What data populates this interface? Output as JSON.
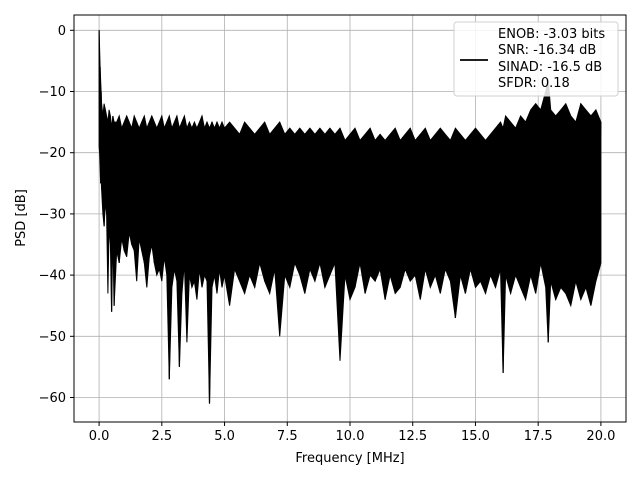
{
  "chart_data": {
    "type": "line",
    "title": "",
    "xlabel": "Frequency [MHz]",
    "ylabel": "PSD [dB]",
    "xlim": [
      -1.0,
      21.0
    ],
    "ylim": [
      -64,
      2.5
    ],
    "xticks": [
      0.0,
      2.5,
      5.0,
      7.5,
      10.0,
      12.5,
      15.0,
      17.5,
      20.0
    ],
    "xtick_labels": [
      "0.0",
      "2.5",
      "5.0",
      "7.5",
      "10.0",
      "12.5",
      "15.0",
      "17.5",
      "20.0"
    ],
    "yticks": [
      0,
      -10,
      -20,
      -30,
      -40,
      -50,
      -60
    ],
    "ytick_labels": [
      "0",
      "−10",
      "−20",
      "−30",
      "−40",
      "−50",
      "−60"
    ],
    "grid": true,
    "legend_position": "top-right",
    "series": [
      {
        "name": "ENOB: -3.03 bits\nSNR: -16.34 dB\nSINAD: -16.5 dB\nSFDR: 0.18",
        "legend_lines": [
          "ENOB: -3.03 bits",
          "SNR: -16.34 dB",
          "SINAD: -16.5 dB",
          "SFDR: 0.18"
        ],
        "color": "#000000",
        "x": [
          0.0,
          0.02,
          0.04,
          0.06,
          0.08,
          0.1,
          0.15,
          0.2,
          0.25,
          0.3,
          0.35,
          0.4,
          0.45,
          0.5,
          0.55,
          0.6,
          0.7,
          0.8,
          0.9,
          1.0,
          1.1,
          1.2,
          1.3,
          1.4,
          1.5,
          1.6,
          1.7,
          1.8,
          1.9,
          2.0,
          2.1,
          2.2,
          2.3,
          2.4,
          2.5,
          2.6,
          2.7,
          2.8,
          2.9,
          3.0,
          3.1,
          3.2,
          3.3,
          3.4,
          3.5,
          3.6,
          3.7,
          3.8,
          3.9,
          4.0,
          4.1,
          4.2,
          4.3,
          4.4,
          4.5,
          4.6,
          4.7,
          4.8,
          4.9,
          5.0,
          5.2,
          5.4,
          5.6,
          5.8,
          6.0,
          6.2,
          6.4,
          6.6,
          6.8,
          7.0,
          7.2,
          7.4,
          7.6,
          7.8,
          8.0,
          8.2,
          8.4,
          8.6,
          8.8,
          9.0,
          9.2,
          9.4,
          9.6,
          9.8,
          10.0,
          10.2,
          10.4,
          10.6,
          10.8,
          11.0,
          11.2,
          11.4,
          11.6,
          11.8,
          12.0,
          12.2,
          12.4,
          12.6,
          12.8,
          13.0,
          13.2,
          13.4,
          13.6,
          13.8,
          14.0,
          14.2,
          14.4,
          14.6,
          14.8,
          15.0,
          15.2,
          15.4,
          15.6,
          15.8,
          16.0,
          16.1,
          16.2,
          16.4,
          16.6,
          16.8,
          17.0,
          17.2,
          17.4,
          17.6,
          17.8,
          17.9,
          18.0,
          18.2,
          18.4,
          18.6,
          18.8,
          19.0,
          19.2,
          19.4,
          19.6,
          19.8,
          20.0
        ],
        "upper": [
          0.0,
          -3,
          -6,
          -8,
          -10,
          -12,
          -14,
          -12,
          -13,
          -14,
          -15,
          -13,
          -14,
          -16,
          -14,
          -15,
          -15,
          -14,
          -16,
          -15,
          -14,
          -15,
          -16,
          -14,
          -15,
          -16,
          -15,
          -14,
          -16,
          -15,
          -14,
          -15,
          -16,
          -15,
          -14,
          -16,
          -15,
          -14,
          -16,
          -15,
          -14,
          -16,
          -15,
          -14,
          -16,
          -15,
          -16,
          -15,
          -16,
          -15,
          -14,
          -16,
          -15,
          -16,
          -15,
          -16,
          -15,
          -16,
          -15,
          -16,
          -15,
          -16,
          -17,
          -15,
          -16,
          -17,
          -16,
          -15,
          -17,
          -16,
          -15,
          -17,
          -16,
          -17,
          -16,
          -17,
          -16,
          -17,
          -16,
          -17,
          -16,
          -17,
          -16,
          -18,
          -17,
          -16,
          -18,
          -17,
          -16,
          -18,
          -17,
          -18,
          -17,
          -16,
          -18,
          -17,
          -16,
          -18,
          -17,
          -16,
          -18,
          -17,
          -16,
          -17,
          -18,
          -16,
          -17,
          -18,
          -17,
          -16,
          -17,
          -18,
          -17,
          -16,
          -15,
          -16,
          -14,
          -15,
          -16,
          -14,
          -15,
          -13,
          -12,
          -13,
          -10,
          -8,
          -13,
          -14,
          -13,
          -12,
          -14,
          -15,
          -12,
          -13,
          -14,
          -13,
          -15
        ],
        "lower": [
          -19,
          -20,
          -22,
          -25,
          -24,
          -26,
          -30,
          -32,
          -28,
          -30,
          -43,
          -32,
          -35,
          -46,
          -33,
          -45,
          -36,
          -38,
          -34,
          -36,
          -37,
          -33,
          -35,
          -36,
          -41,
          -34,
          -36,
          -38,
          -42,
          -37,
          -35,
          -38,
          -40,
          -39,
          -41,
          -37,
          -40,
          -57,
          -42,
          -39,
          -41,
          -55,
          -43,
          -38,
          -51,
          -40,
          -42,
          -41,
          -44,
          -39,
          -42,
          -40,
          -41,
          -61,
          -42,
          -40,
          -43,
          -39,
          -42,
          -40,
          -45,
          -39,
          -41,
          -43,
          -40,
          -42,
          -38,
          -41,
          -43,
          -39,
          -50,
          -40,
          -42,
          -38,
          -40,
          -43,
          -39,
          -41,
          -38,
          -42,
          -40,
          -38,
          -54,
          -40,
          -44,
          -42,
          -38,
          -43,
          -40,
          -41,
          -39,
          -44,
          -40,
          -43,
          -42,
          -39,
          -41,
          -40,
          -44,
          -39,
          -42,
          -40,
          -43,
          -39,
          -41,
          -47,
          -40,
          -43,
          -39,
          -42,
          -41,
          -43,
          -40,
          -42,
          -39,
          -56,
          -40,
          -43,
          -40,
          -42,
          -44,
          -40,
          -43,
          -38,
          -42,
          -51,
          -41,
          -44,
          -42,
          -43,
          -45,
          -41,
          -44,
          -42,
          -45,
          -41,
          -38
        ]
      }
    ]
  }
}
